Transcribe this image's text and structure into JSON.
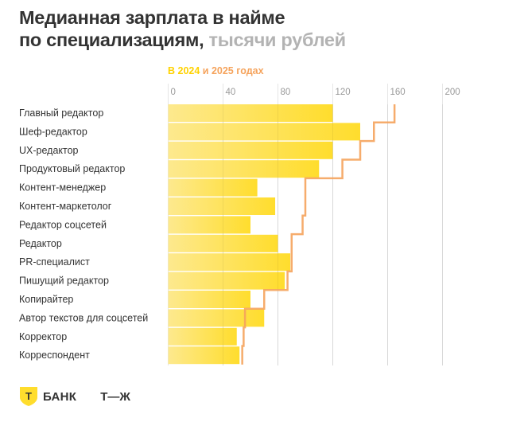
{
  "title": {
    "main": "Медианная зарплата в найме по специализациям,",
    "line1": "Медианная зарплата в найме",
    "line2_dark": "по специализациям,",
    "line2_muted": "тысячи рублей"
  },
  "legend": {
    "part_2024": "В 2024",
    "part_2025": "и 2025 годах",
    "color_2024": "#ffdd2d",
    "color_2025": "#f5a35c"
  },
  "footer": {
    "tbank_label": "БАНК",
    "tbank_logo_letter": "Т",
    "tj_label": "Т—Ж"
  },
  "chart_data": {
    "type": "bar",
    "orientation": "horizontal",
    "title": "Медианная зарплата в найме по специализациям, тысячи рублей",
    "xlabel": "",
    "ylabel": "",
    "xlim": [
      0,
      200
    ],
    "xticks": [
      0,
      40,
      80,
      120,
      160,
      200
    ],
    "grid": true,
    "legend_position": "top-left",
    "categories": [
      "Главный редактор",
      "Шеф-редактор",
      "UX-редактор",
      "Продуктовый редактор",
      "Контент-менеджер",
      "Контент-маркетолог",
      "Редактор соцсетей",
      "Редактор",
      "PR-специалист",
      "Пишущий редактор",
      "Копирайтер",
      "Автор текстов для соцсетей",
      "Корректор",
      "Корреспондент"
    ],
    "series": [
      {
        "name": "2024",
        "style": "bar",
        "color": "#ffdd2d",
        "values": [
          120,
          140,
          120,
          110,
          65,
          78,
          60,
          80,
          89,
          85,
          60,
          70,
          50,
          52
        ]
      },
      {
        "name": "2025",
        "style": "step-line",
        "color": "#f5a35c",
        "values": [
          165,
          150,
          140,
          127,
          100,
          100,
          98,
          90,
          90,
          87,
          70,
          56,
          55,
          54
        ]
      }
    ]
  }
}
